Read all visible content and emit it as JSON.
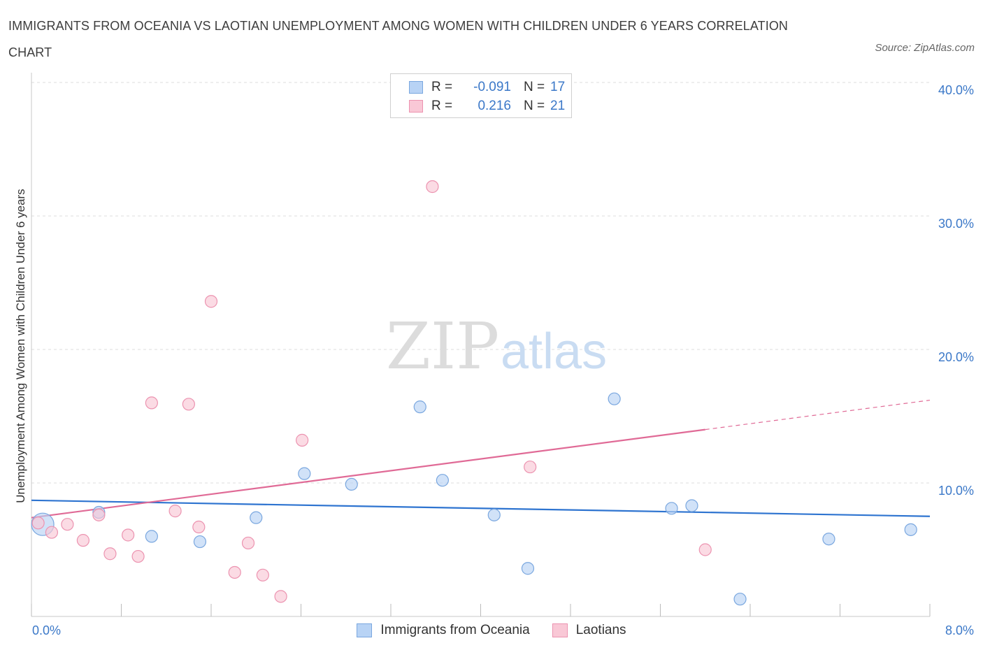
{
  "title": "IMMIGRANTS FROM OCEANIA VS LAOTIAN UNEMPLOYMENT AMONG WOMEN WITH CHILDREN UNDER 6 YEARS CORRELATION CHART",
  "source": "Source: ZipAtlas.com",
  "watermark": {
    "zip": "ZIP",
    "atlas": "atlas"
  },
  "colors": {
    "blue_fill": "#b8d3f5",
    "blue_stroke": "#7aa7df",
    "blue_line": "#2e74d0",
    "pink_fill": "#f9c8d6",
    "pink_stroke": "#ec93b0",
    "pink_line": "#e06a96",
    "accent_text": "#3b78c8",
    "grid": "#dddddd"
  },
  "legend": {
    "rows": [
      {
        "r_label": "R =",
        "r_value": "-0.091",
        "n_label": "N =",
        "n_value": "17"
      },
      {
        "r_label": "R =",
        "r_value": "0.216",
        "n_label": "N =",
        "n_value": "21"
      }
    ]
  },
  "bottom_legend": [
    "Immigrants from Oceania",
    "Laotians"
  ],
  "chart_data": {
    "type": "scatter",
    "title": "IMMIGRANTS FROM OCEANIA VS LAOTIAN UNEMPLOYMENT AMONG WOMEN WITH CHILDREN UNDER 6 YEARS CORRELATION CHART",
    "xlabel": "",
    "ylabel": "Unemployment Among Women with Children Under 6 years",
    "xlim": [
      0,
      8
    ],
    "ylim": [
      0,
      40
    ],
    "x_tick_labels": [
      "0.0%",
      "8.0%"
    ],
    "y_ticks": [
      10,
      20,
      30,
      40
    ],
    "y_tick_labels": [
      "10.0%",
      "20.0%",
      "30.0%",
      "40.0%"
    ],
    "grid": true,
    "legend_position": "top-center",
    "series": [
      {
        "name": "Immigrants from Oceania",
        "points": [
          {
            "x": 0.1,
            "y": 6.9,
            "big": true
          },
          {
            "x": 0.6,
            "y": 7.8
          },
          {
            "x": 1.07,
            "y": 6.0
          },
          {
            "x": 1.5,
            "y": 5.6
          },
          {
            "x": 2.0,
            "y": 7.4
          },
          {
            "x": 2.43,
            "y": 10.7
          },
          {
            "x": 2.85,
            "y": 9.9
          },
          {
            "x": 3.46,
            "y": 15.7
          },
          {
            "x": 3.66,
            "y": 10.2
          },
          {
            "x": 4.12,
            "y": 7.6
          },
          {
            "x": 4.42,
            "y": 3.6
          },
          {
            "x": 5.19,
            "y": 16.3
          },
          {
            "x": 5.7,
            "y": 8.1
          },
          {
            "x": 5.88,
            "y": 8.3
          },
          {
            "x": 6.31,
            "y": 1.3
          },
          {
            "x": 7.1,
            "y": 5.8
          },
          {
            "x": 7.83,
            "y": 6.5
          }
        ],
        "trend": {
          "x": [
            0,
            8
          ],
          "y": [
            8.7,
            7.5
          ]
        }
      },
      {
        "name": "Laotians",
        "points": [
          {
            "x": 0.06,
            "y": 7.0
          },
          {
            "x": 0.18,
            "y": 6.3
          },
          {
            "x": 0.32,
            "y": 6.9
          },
          {
            "x": 0.46,
            "y": 5.7
          },
          {
            "x": 0.6,
            "y": 7.6
          },
          {
            "x": 0.7,
            "y": 4.7
          },
          {
            "x": 0.86,
            "y": 6.1
          },
          {
            "x": 0.95,
            "y": 4.5
          },
          {
            "x": 1.07,
            "y": 16.0
          },
          {
            "x": 1.28,
            "y": 7.9
          },
          {
            "x": 1.4,
            "y": 15.9
          },
          {
            "x": 1.49,
            "y": 6.7
          },
          {
            "x": 1.6,
            "y": 23.6
          },
          {
            "x": 1.81,
            "y": 3.3
          },
          {
            "x": 1.93,
            "y": 5.5
          },
          {
            "x": 2.06,
            "y": 3.1
          },
          {
            "x": 2.22,
            "y": 1.5
          },
          {
            "x": 2.41,
            "y": 13.2
          },
          {
            "x": 3.57,
            "y": 32.2
          },
          {
            "x": 4.44,
            "y": 11.2
          },
          {
            "x": 6.0,
            "y": 5.0
          }
        ],
        "trend": {
          "x": [
            0,
            6.0
          ],
          "y": [
            7.4,
            14.0
          ]
        },
        "trend_extension": {
          "x": [
            6.0,
            8
          ],
          "y": [
            14.0,
            16.2
          ]
        }
      }
    ]
  }
}
